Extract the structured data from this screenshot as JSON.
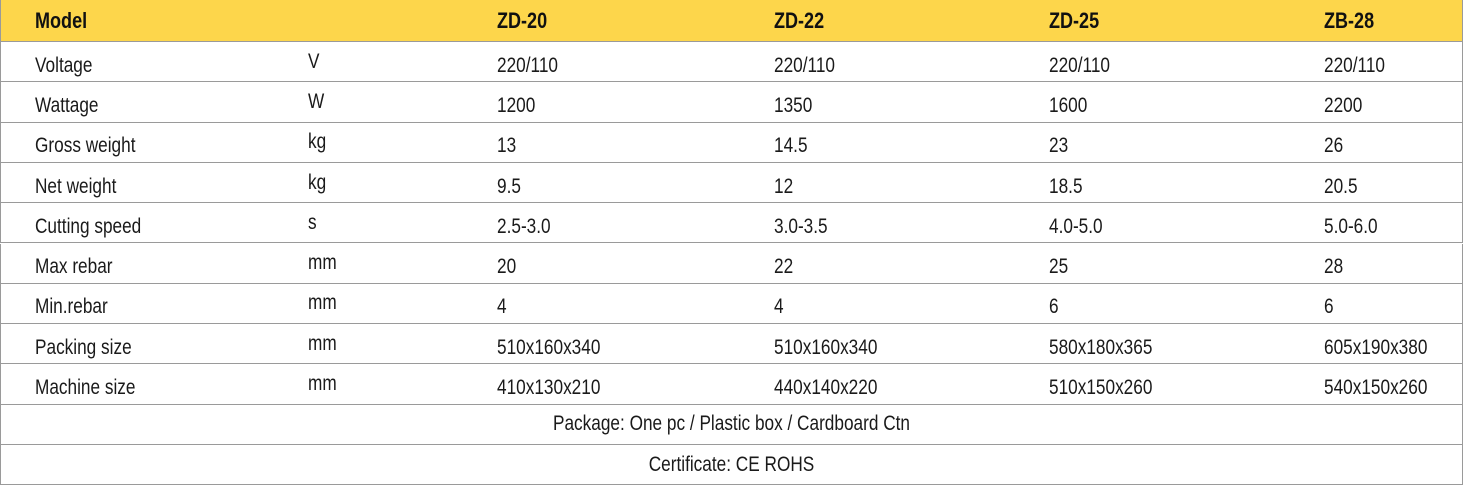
{
  "header": {
    "label": "Model",
    "models": [
      "ZD-20",
      "ZD-22",
      "ZD-25",
      "ZB-28"
    ]
  },
  "rows": [
    {
      "label": "Voltage",
      "unit": "V",
      "values": [
        "220/110",
        "220/110",
        "220/110",
        "220/110"
      ]
    },
    {
      "label": "Wattage",
      "unit": "W",
      "values": [
        "1200",
        "1350",
        "1600",
        "2200"
      ]
    },
    {
      "label": "Gross weight",
      "unit": "kg",
      "values": [
        "13",
        "14.5",
        "23",
        "26"
      ]
    },
    {
      "label": "Net weight",
      "unit": "kg",
      "values": [
        "9.5",
        "12",
        "18.5",
        "20.5"
      ]
    },
    {
      "label": "Cutting speed",
      "unit": "s",
      "values": [
        "2.5-3.0",
        "3.0-3.5",
        "4.0-5.0",
        "5.0-6.0"
      ]
    },
    {
      "label": "Max rebar",
      "unit": "mm",
      "values": [
        "20",
        "22",
        "25",
        "28"
      ]
    },
    {
      "label": "Min.rebar",
      "unit": "mm",
      "values": [
        "4",
        "4",
        "6",
        "6"
      ]
    },
    {
      "label": "Packing size",
      "unit": "mm",
      "values": [
        "510x160x340",
        "510x160x340",
        "580x180x365",
        "605x190x380"
      ]
    },
    {
      "label": "Machine size",
      "unit": "mm",
      "values": [
        "410x130x210",
        "440x140x220",
        "510x150x260",
        "540x150x260"
      ]
    }
  ],
  "footer": [
    "Package: One pc / Plastic box / Cardboard Ctn",
    "Certificate: CE ROHS"
  ]
}
